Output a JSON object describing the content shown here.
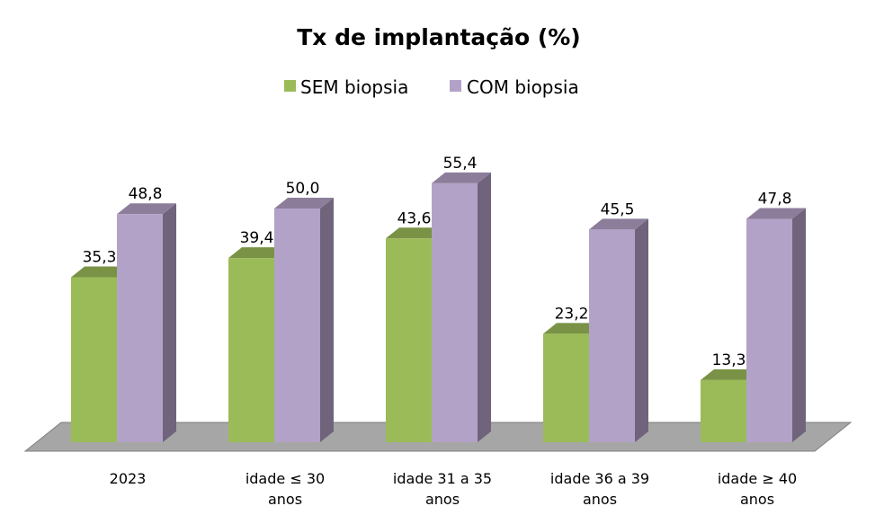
{
  "chart_data": {
    "type": "bar",
    "title": "Tx de implantação (%)",
    "xlabel": "",
    "ylabel": "",
    "ylim": [
      0,
      60
    ],
    "grid": false,
    "legend_position": "top",
    "categories": [
      [
        "2023"
      ],
      [
        "idade ≤ 30",
        "anos"
      ],
      [
        "idade 31 a 35",
        "anos"
      ],
      [
        "idade 36 a 39",
        "anos"
      ],
      [
        "idade ≥ 40",
        "anos"
      ]
    ],
    "series": [
      {
        "name": "SEM biopsia",
        "color": "#9bbb59",
        "values": [
          35.3,
          39.4,
          43.6,
          23.2,
          13.3
        ],
        "labels": [
          "35,3",
          "39,4",
          "43,6",
          "23,2",
          "13,3"
        ]
      },
      {
        "name": "COM biopsia",
        "color": "#b3a2c7",
        "values": [
          48.8,
          50.0,
          55.4,
          45.5,
          47.8
        ],
        "labels": [
          "48,8",
          "50,0",
          "55,4",
          "45,5",
          "47,8"
        ]
      }
    ]
  }
}
